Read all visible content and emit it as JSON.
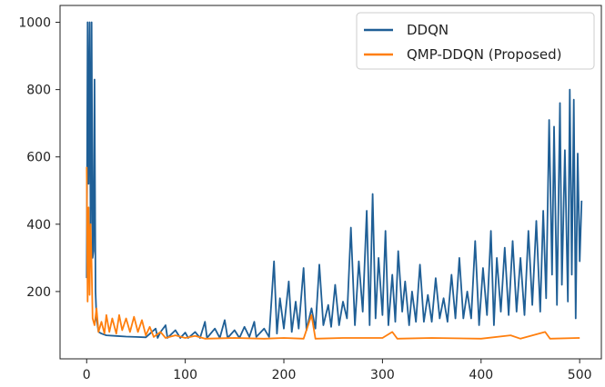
{
  "chart_data": {
    "type": "line",
    "title": "",
    "xlabel": "",
    "ylabel": "",
    "xlim": [
      -27,
      522
    ],
    "ylim": [
      0,
      1050
    ],
    "xticks": [
      0,
      100,
      200,
      300,
      400,
      500
    ],
    "yticks": [
      200,
      400,
      600,
      800,
      1000
    ],
    "grid": false,
    "legend_position": "top-right",
    "series": [
      {
        "name": "DDQN",
        "color": "#1f5f96",
        "points": [
          [
            0,
            240
          ],
          [
            1,
            1000
          ],
          [
            2,
            520
          ],
          [
            3,
            1000
          ],
          [
            4,
            350
          ],
          [
            5,
            1000
          ],
          [
            6,
            300
          ],
          [
            7,
            320
          ],
          [
            8,
            830
          ],
          [
            9,
            200
          ],
          [
            10,
            120
          ],
          [
            12,
            80
          ],
          [
            15,
            75
          ],
          [
            20,
            70
          ],
          [
            30,
            68
          ],
          [
            40,
            66
          ],
          [
            50,
            65
          ],
          [
            60,
            64
          ],
          [
            70,
            90
          ],
          [
            72,
            62
          ],
          [
            75,
            80
          ],
          [
            80,
            100
          ],
          [
            82,
            62
          ],
          [
            90,
            85
          ],
          [
            95,
            62
          ],
          [
            100,
            78
          ],
          [
            103,
            62
          ],
          [
            110,
            80
          ],
          [
            115,
            62
          ],
          [
            120,
            110
          ],
          [
            122,
            62
          ],
          [
            130,
            90
          ],
          [
            135,
            62
          ],
          [
            140,
            115
          ],
          [
            143,
            62
          ],
          [
            150,
            85
          ],
          [
            155,
            62
          ],
          [
            160,
            95
          ],
          [
            165,
            65
          ],
          [
            170,
            110
          ],
          [
            172,
            65
          ],
          [
            180,
            90
          ],
          [
            185,
            65
          ],
          [
            190,
            290
          ],
          [
            193,
            75
          ],
          [
            196,
            180
          ],
          [
            200,
            90
          ],
          [
            205,
            230
          ],
          [
            208,
            80
          ],
          [
            212,
            170
          ],
          [
            215,
            90
          ],
          [
            220,
            270
          ],
          [
            223,
            85
          ],
          [
            228,
            150
          ],
          [
            232,
            90
          ],
          [
            236,
            280
          ],
          [
            240,
            100
          ],
          [
            245,
            160
          ],
          [
            248,
            95
          ],
          [
            252,
            220
          ],
          [
            256,
            100
          ],
          [
            260,
            170
          ],
          [
            264,
            120
          ],
          [
            268,
            390
          ],
          [
            272,
            100
          ],
          [
            276,
            290
          ],
          [
            280,
            140
          ],
          [
            284,
            440
          ],
          [
            287,
            100
          ],
          [
            290,
            490
          ],
          [
            293,
            120
          ],
          [
            296,
            300
          ],
          [
            300,
            130
          ],
          [
            303,
            380
          ],
          [
            306,
            100
          ],
          [
            310,
            250
          ],
          [
            313,
            110
          ],
          [
            316,
            320
          ],
          [
            320,
            140
          ],
          [
            323,
            230
          ],
          [
            327,
            100
          ],
          [
            330,
            200
          ],
          [
            334,
            110
          ],
          [
            338,
            280
          ],
          [
            342,
            110
          ],
          [
            346,
            190
          ],
          [
            350,
            110
          ],
          [
            354,
            240
          ],
          [
            358,
            120
          ],
          [
            362,
            180
          ],
          [
            366,
            110
          ],
          [
            370,
            250
          ],
          [
            374,
            120
          ],
          [
            378,
            300
          ],
          [
            382,
            120
          ],
          [
            386,
            200
          ],
          [
            390,
            120
          ],
          [
            394,
            350
          ],
          [
            398,
            100
          ],
          [
            402,
            270
          ],
          [
            406,
            130
          ],
          [
            410,
            380
          ],
          [
            413,
            100
          ],
          [
            416,
            300
          ],
          [
            420,
            140
          ],
          [
            424,
            330
          ],
          [
            428,
            130
          ],
          [
            432,
            350
          ],
          [
            436,
            140
          ],
          [
            440,
            300
          ],
          [
            444,
            130
          ],
          [
            448,
            380
          ],
          [
            452,
            160
          ],
          [
            456,
            410
          ],
          [
            460,
            140
          ],
          [
            463,
            440
          ],
          [
            466,
            180
          ],
          [
            469,
            710
          ],
          [
            472,
            250
          ],
          [
            474,
            690
          ],
          [
            477,
            160
          ],
          [
            480,
            760
          ],
          [
            482,
            220
          ],
          [
            485,
            620
          ],
          [
            488,
            170
          ],
          [
            490,
            800
          ],
          [
            492,
            250
          ],
          [
            494,
            770
          ],
          [
            496,
            120
          ],
          [
            498,
            610
          ],
          [
            500,
            290
          ],
          [
            502,
            470
          ]
        ]
      },
      {
        "name": "QMP-DDQN (Proposed)",
        "color": "#ff7f0e",
        "points": [
          [
            0,
            570
          ],
          [
            1,
            170
          ],
          [
            2,
            450
          ],
          [
            3,
            190
          ],
          [
            4,
            400
          ],
          [
            5,
            280
          ],
          [
            6,
            120
          ],
          [
            8,
            100
          ],
          [
            10,
            150
          ],
          [
            12,
            80
          ],
          [
            15,
            110
          ],
          [
            18,
            75
          ],
          [
            20,
            130
          ],
          [
            23,
            80
          ],
          [
            26,
            120
          ],
          [
            30,
            75
          ],
          [
            33,
            130
          ],
          [
            36,
            85
          ],
          [
            40,
            120
          ],
          [
            44,
            80
          ],
          [
            48,
            125
          ],
          [
            52,
            80
          ],
          [
            56,
            115
          ],
          [
            60,
            70
          ],
          [
            64,
            95
          ],
          [
            68,
            65
          ],
          [
            75,
            80
          ],
          [
            80,
            62
          ],
          [
            90,
            70
          ],
          [
            100,
            62
          ],
          [
            110,
            68
          ],
          [
            120,
            60
          ],
          [
            150,
            62
          ],
          [
            180,
            60
          ],
          [
            200,
            62
          ],
          [
            220,
            60
          ],
          [
            228,
            130
          ],
          [
            232,
            60
          ],
          [
            260,
            62
          ],
          [
            300,
            62
          ],
          [
            310,
            80
          ],
          [
            315,
            60
          ],
          [
            350,
            62
          ],
          [
            400,
            60
          ],
          [
            430,
            70
          ],
          [
            440,
            60
          ],
          [
            465,
            80
          ],
          [
            470,
            60
          ],
          [
            500,
            62
          ]
        ]
      }
    ]
  }
}
